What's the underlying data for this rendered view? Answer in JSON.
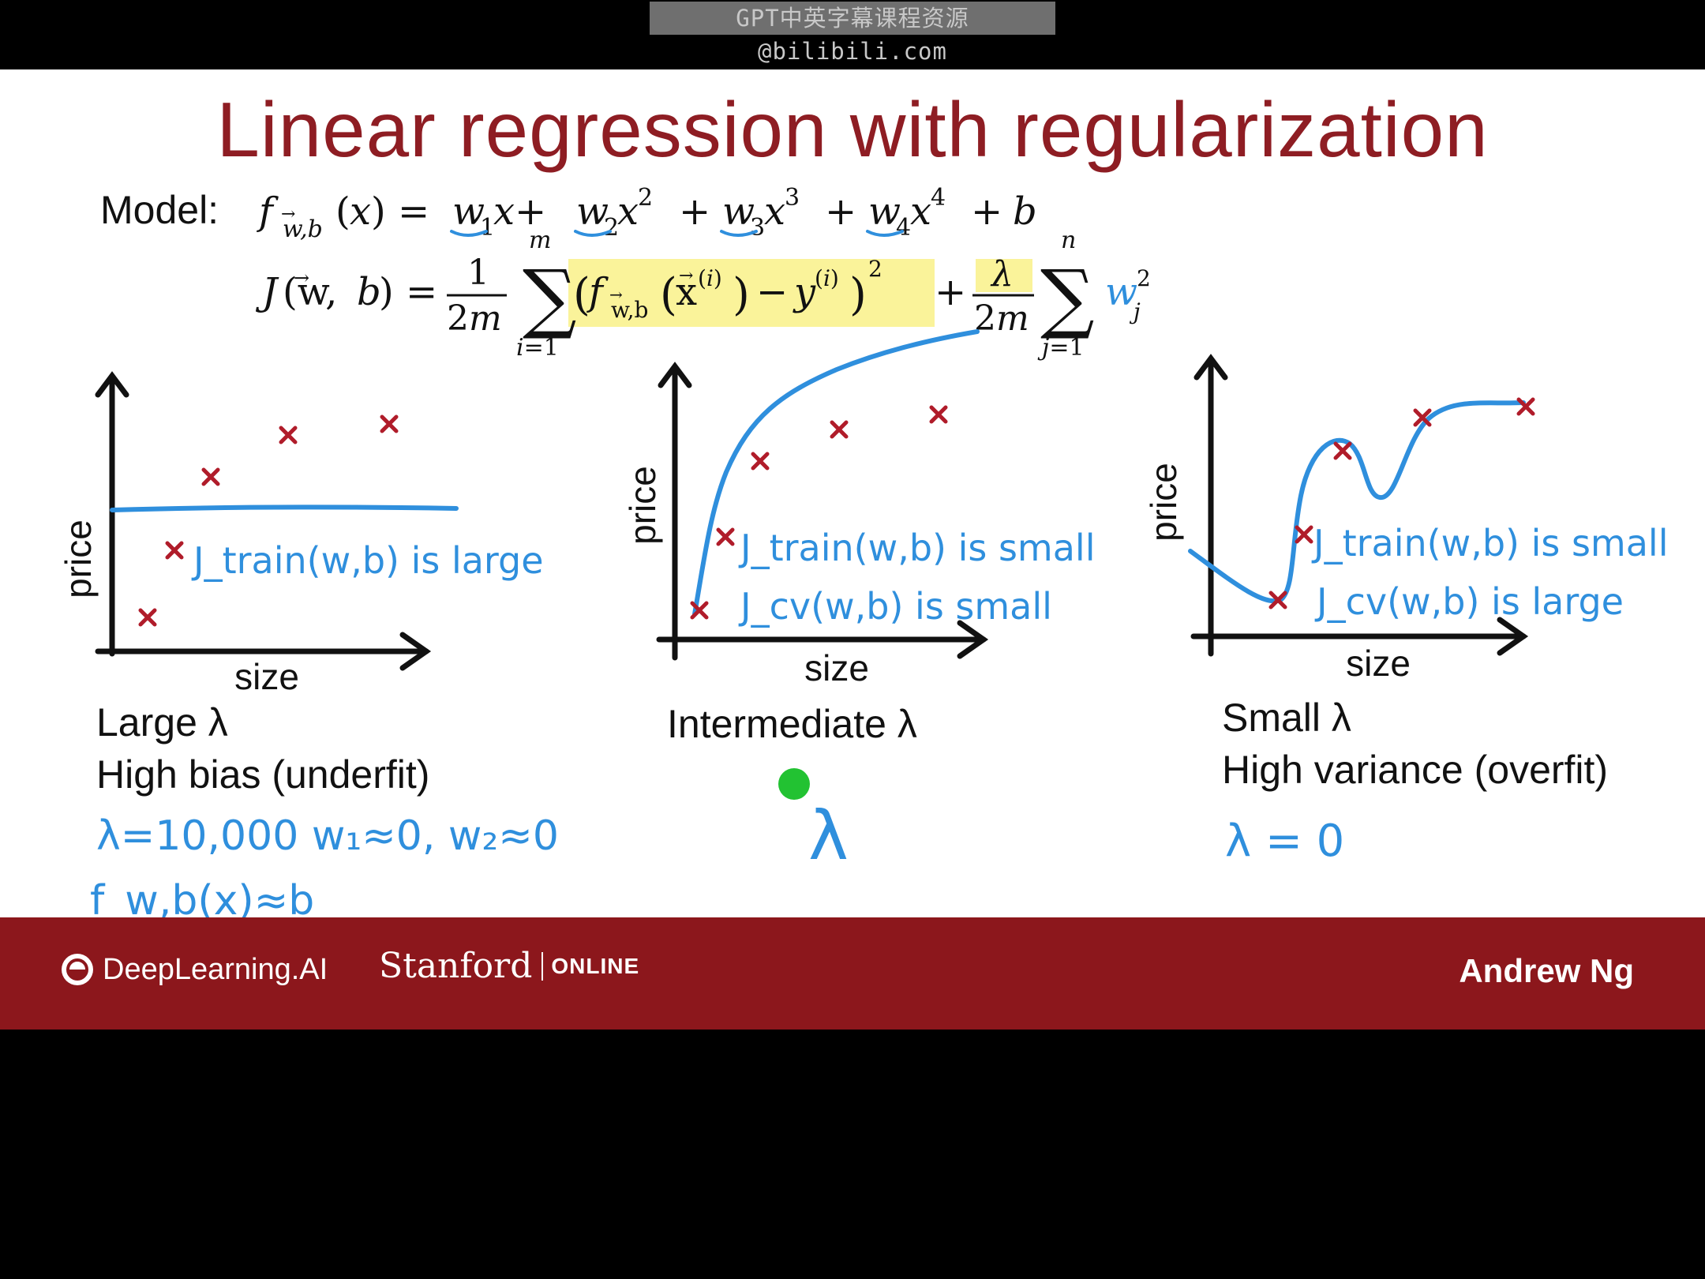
{
  "watermark": "GPT中英字幕课程资源@bilibili.com",
  "slide": {
    "title": "Linear regression with regularization",
    "model_label": "Model:",
    "footer": {
      "brand": "DeepLearning.AI",
      "university": "Stanford",
      "online": "ONLINE",
      "author": "Andrew Ng"
    }
  },
  "panels": [
    {
      "ylabel": "price",
      "xlabel": "size",
      "annotations": [
        "J_train(w,b) is large"
      ],
      "heading": "Large λ",
      "subheading": "High bias (underfit)",
      "notes": [
        "λ=10,000   w₁≈0, w₂≈0",
        "f_w,b(x)≈b"
      ]
    },
    {
      "ylabel": "price",
      "xlabel": "size",
      "annotations": [
        "J_train(w,b) is small",
        "J_cv(w,b) is small"
      ],
      "heading": "Intermediate λ",
      "subheading": "",
      "notes": [
        "λ"
      ]
    },
    {
      "ylabel": "price",
      "xlabel": "size",
      "annotations": [
        "J_train(w,b) is small",
        "J_cv(w,b) is large"
      ],
      "heading": "Small λ",
      "subheading": "High variance (overfit)",
      "notes": [
        "λ = 0"
      ]
    }
  ],
  "colors": {
    "title": "#8e1d23",
    "footer": "#8c171c",
    "ink_blue": "#2f8fdd",
    "marker_red": "#b01c2a",
    "highlight": "#faf39a",
    "pointer": "#22c232"
  },
  "icons": [
    "deeplearning-logo-icon",
    "laser-pointer-icon"
  ]
}
